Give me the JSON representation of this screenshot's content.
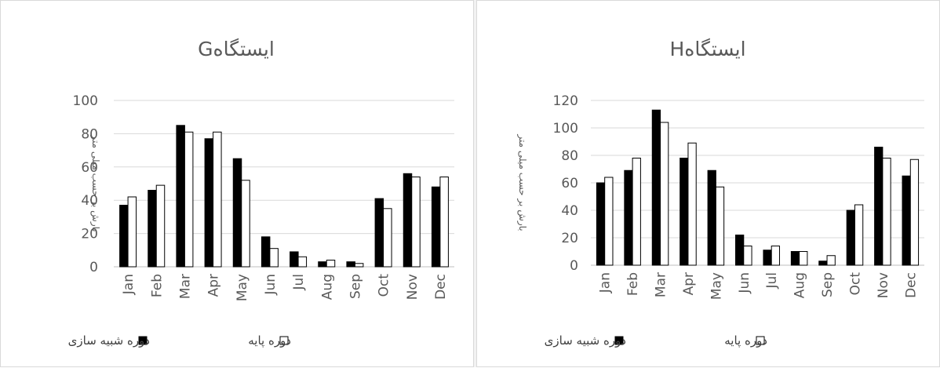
{
  "chart_data": [
    {
      "type": "bar",
      "title": "ایستگاهG",
      "ylabel": "بارش بر حسب میلی متر",
      "xlabel": "",
      "ylim": [
        0,
        100
      ],
      "yticks": [
        0,
        20,
        40,
        60,
        80,
        100
      ],
      "grid": true,
      "legend_position": "bottom",
      "categories": [
        "Jan",
        "Feb",
        "Mar",
        "Apr",
        "May",
        "Jun",
        "Jul",
        "Aug",
        "Sep",
        "Oct",
        "Nov",
        "Dec"
      ],
      "series": [
        {
          "name": "دوره شبیه سازی",
          "color": "#000000",
          "values": [
            37,
            46,
            85,
            77,
            65,
            18,
            9,
            3,
            3,
            41,
            56,
            48
          ]
        },
        {
          "name": "دوره پایه",
          "color": "#ffffff",
          "values": [
            42,
            49,
            81,
            81,
            52,
            11,
            6,
            4,
            2,
            35,
            54,
            54
          ]
        }
      ]
    },
    {
      "type": "bar",
      "title": "ایستگاهH",
      "ylabel": "بارش بر حسب میلی متر",
      "xlabel": "",
      "ylim": [
        0,
        120
      ],
      "yticks": [
        0,
        20,
        40,
        60,
        80,
        100,
        120
      ],
      "grid": true,
      "legend_position": "bottom",
      "categories": [
        "Jan",
        "Feb",
        "Mar",
        "Apr",
        "May",
        "Jun",
        "Jul",
        "Aug",
        "Sep",
        "Oct",
        "Nov",
        "Dec"
      ],
      "series": [
        {
          "name": "دوره شبیه سازی",
          "color": "#000000",
          "values": [
            60,
            69,
            113,
            78,
            69,
            22,
            11,
            10,
            3,
            40,
            86,
            65
          ]
        },
        {
          "name": "دوره پایه",
          "color": "#ffffff",
          "values": [
            64,
            78,
            104,
            89,
            57,
            14,
            14,
            10,
            7,
            44,
            78,
            77
          ]
        }
      ]
    }
  ]
}
